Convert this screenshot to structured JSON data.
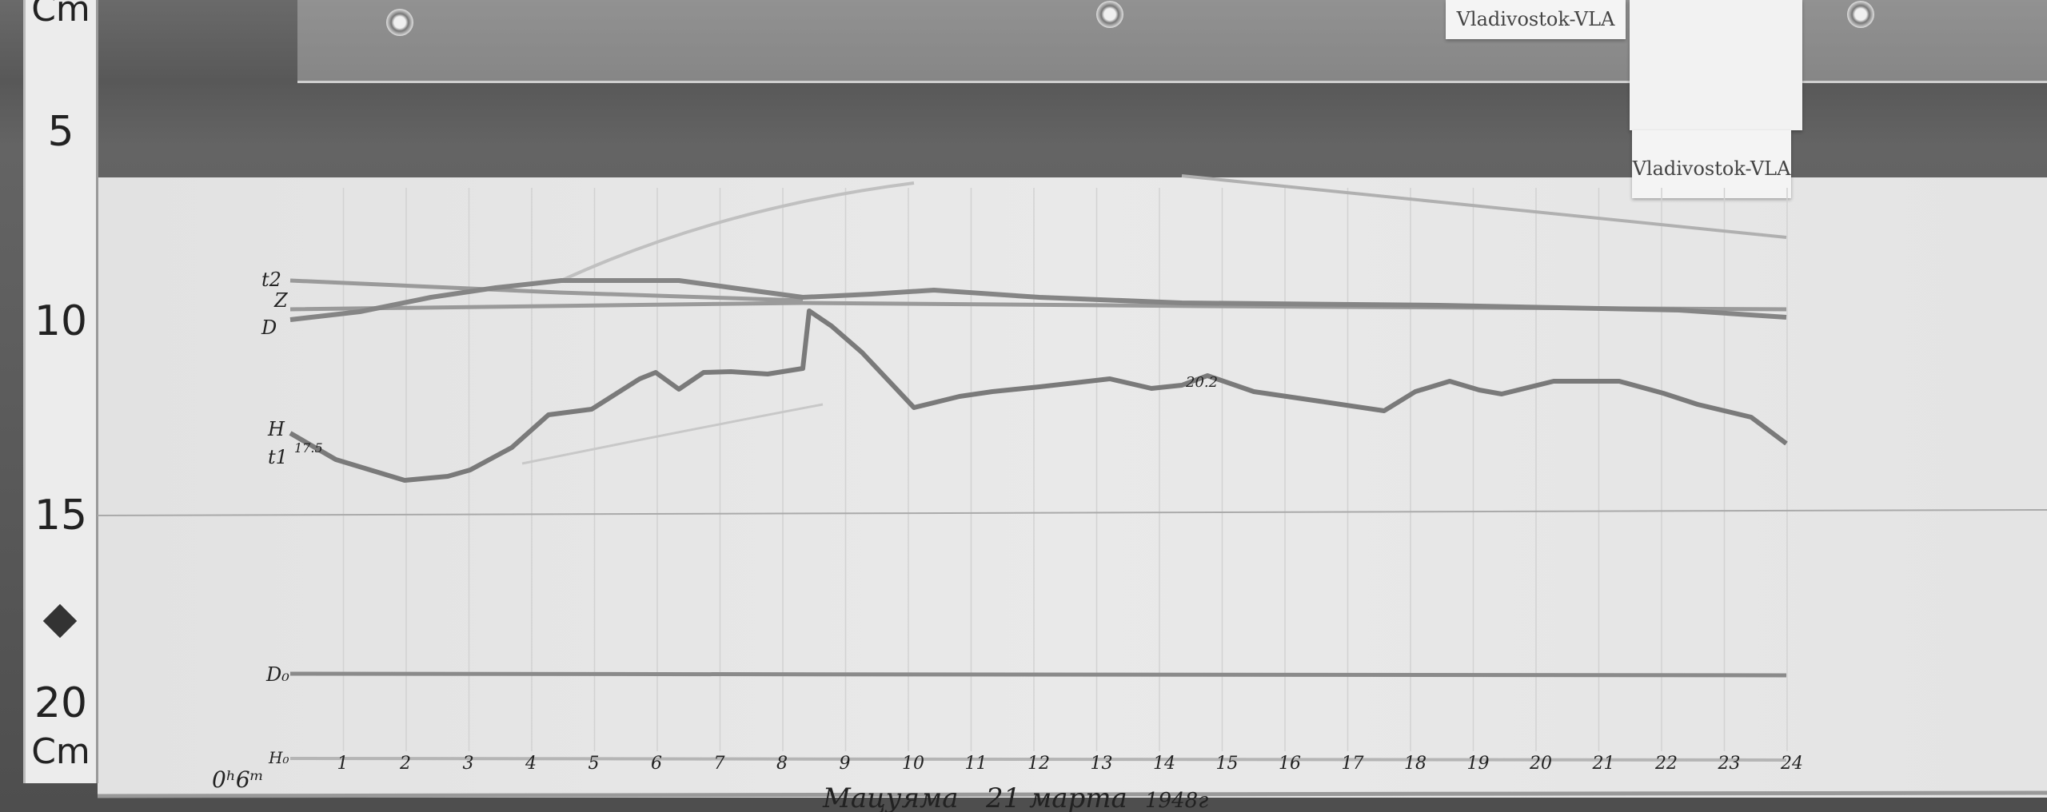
{
  "ruler": {
    "unit_top": "Cm",
    "marks": [
      "5",
      "10",
      "15",
      "20"
    ],
    "unit_bottom": "Cm"
  },
  "tags": [
    "Vladivostok-VLA",
    "Vladivostok-VLA"
  ],
  "trace_labels": {
    "t2": "t2",
    "z": "Z",
    "d": "D",
    "h": "H",
    "t1": "t1",
    "t1_value": "17.5",
    "h_value": "20.2",
    "d0": "D₀",
    "h0": "H₀"
  },
  "time_axis": {
    "start": "0ʰ6ᵐ",
    "hours": [
      "1",
      "2",
      "3",
      "4",
      "5",
      "6",
      "7",
      "8",
      "9",
      "10",
      "11",
      "12",
      "13",
      "14",
      "15",
      "16",
      "17",
      "18",
      "19",
      "20",
      "21",
      "22",
      "23",
      "24"
    ]
  },
  "date": {
    "place": "Мацуяма",
    "day": "21 марта",
    "year": "1948г"
  }
}
